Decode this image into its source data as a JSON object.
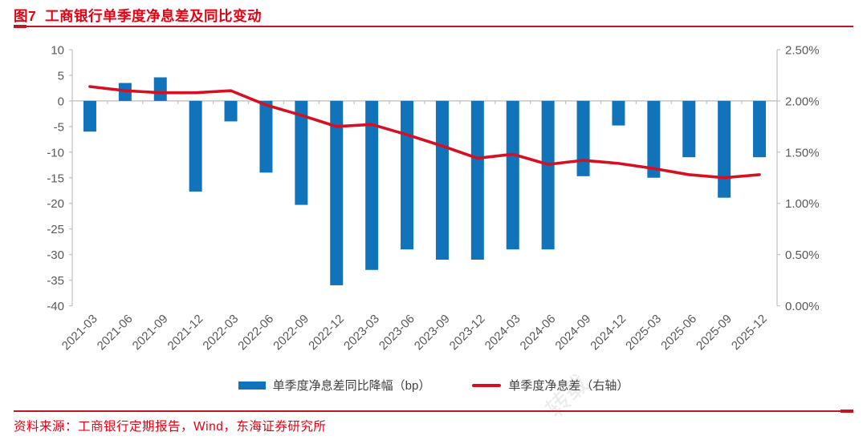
{
  "figure": {
    "title": "图7  工商银行单季度净息差及同比变动",
    "source": "资料来源：工商银行定期报告，Wind，东海证券研究所",
    "watermark": "转载"
  },
  "legend": {
    "bar_label": "单季度净息差同比降幅（bp）",
    "line_label": "单季度净息差（右轴）"
  },
  "colors": {
    "title_red": "#E60012",
    "rule_red": "#BE1622",
    "bar_blue": "#1173B9",
    "line_red": "#D60F23",
    "axis_text": "#595959",
    "axis_line": "#C6C6C6",
    "legend_text": "#404040"
  },
  "chart_data": {
    "type": "bar",
    "subtype": "bar+line combo, dual axis",
    "title": "工商银行单季度净息差及同比变动",
    "categories": [
      "2021-03",
      "2021-06",
      "2021-09",
      "2021-12",
      "2022-03",
      "2022-06",
      "2022-09",
      "2022-12",
      "2023-03",
      "2023-06",
      "2023-09",
      "2023-12",
      "2024-03",
      "2024-06",
      "2024-09",
      "2024-12",
      "2025-03",
      "2025-06",
      "2025-09",
      "2025-12"
    ],
    "series": [
      {
        "name": "单季度净息差同比降幅（bp）",
        "type": "bar",
        "axis": "left",
        "values": [
          -6,
          3.5,
          4.6,
          -17.7,
          -4,
          -14,
          -20.3,
          -36,
          -33,
          -29,
          -31,
          -31,
          -29,
          -29,
          -14.7,
          -4.8,
          -15,
          -11,
          -18.9,
          -11
        ]
      },
      {
        "name": "单季度净息差（右轴）",
        "type": "line",
        "axis": "right",
        "values": [
          2.14,
          2.1,
          2.08,
          2.08,
          2.1,
          1.96,
          1.86,
          1.75,
          1.77,
          1.67,
          1.56,
          1.44,
          1.48,
          1.38,
          1.42,
          1.39,
          1.34,
          1.28,
          1.25,
          1.28
        ]
      }
    ],
    "left_axis": {
      "min": -40,
      "max": 10,
      "step": 5,
      "tick_labels": [
        "10",
        "5",
        "0",
        "-5",
        "-10",
        "-15",
        "-20",
        "-25",
        "-30",
        "-35",
        "-40"
      ]
    },
    "right_axis": {
      "min": 0,
      "max": 2.5,
      "step": 0.5,
      "tick_labels": [
        "2.50%",
        "2.00%",
        "1.50%",
        "1.00%",
        "0.50%",
        "0.00%"
      ]
    },
    "grid": false,
    "legend_position": "bottom"
  }
}
